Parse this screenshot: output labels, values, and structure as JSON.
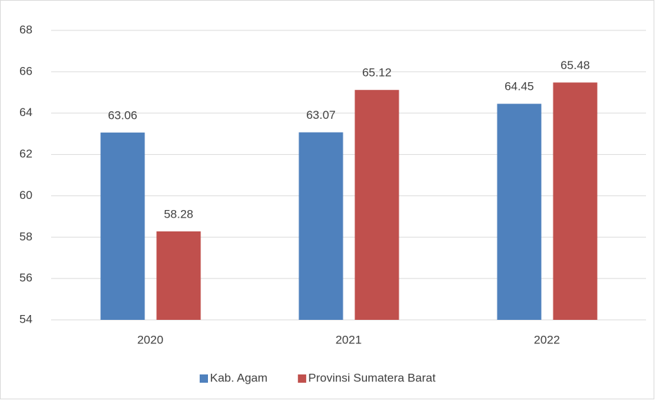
{
  "chart_data": {
    "type": "bar",
    "categories": [
      "2020",
      "2021",
      "2022"
    ],
    "series": [
      {
        "name": "Kab. Agam",
        "color": "#4f81bd",
        "values": [
          63.06,
          63.07,
          64.45
        ]
      },
      {
        "name": "Provinsi Sumatera Barat",
        "color": "#c0504d",
        "values": [
          58.28,
          65.12,
          65.48
        ]
      }
    ],
    "ylim": [
      54,
      68
    ],
    "yticks": [
      54,
      56,
      58,
      60,
      62,
      64,
      66,
      68
    ],
    "grid": true,
    "legend": "bottom"
  }
}
